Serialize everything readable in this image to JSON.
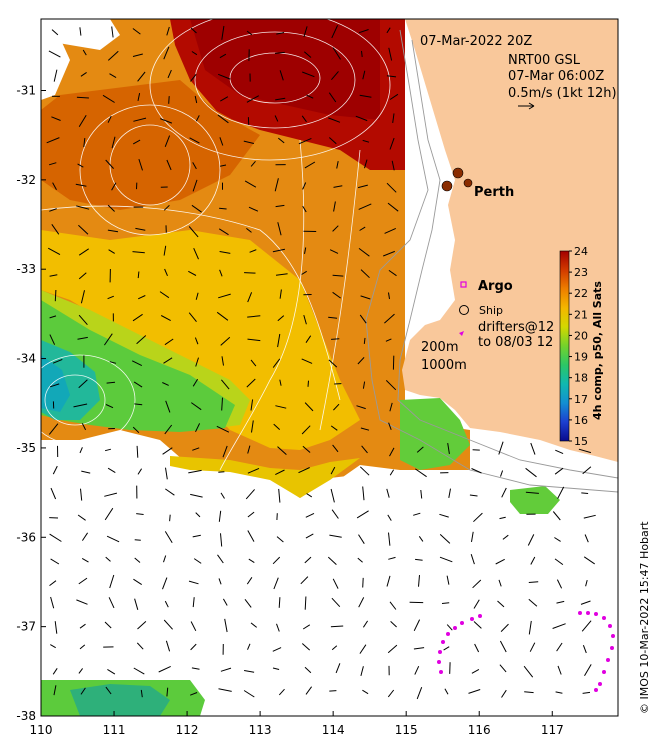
{
  "header": {
    "datetime": "07-Mar-2022 20Z",
    "model": "NRT00 GSL",
    "model_time": "07-Mar 06:00Z",
    "vector_scale": "0.5m/s (1kt 12h)"
  },
  "labels": {
    "city": "Perth",
    "argo": "Argo",
    "ship": "Ship",
    "drifters_line1": "drifters@12",
    "drifters_line2": "to 08/03 12",
    "contour_200": "200m",
    "contour_1000": "1000m"
  },
  "colorbar": {
    "title": "4h comp, p50, All Sats",
    "min": 15,
    "max": 24,
    "ticks": [
      "24",
      "23",
      "22",
      "21",
      "20",
      "19",
      "18",
      "17",
      "16",
      "15"
    ]
  },
  "credit": "© IMOS 10-Mar-2022 15:47 Hobart",
  "axes": {
    "x_ticks": [
      "110",
      "111",
      "112",
      "113",
      "114",
      "115",
      "116",
      "117"
    ],
    "y_ticks": [
      "-31",
      "-32",
      "-33",
      "-34",
      "-35",
      "-36",
      "-37",
      "-38"
    ],
    "lon_range": [
      110,
      117.9
    ],
    "lat_range": [
      -38,
      -30.2
    ]
  },
  "colors": {
    "land": "#f9c89b",
    "sst_hot": "#a80000",
    "sst_warm": "#d86a00",
    "sst_mid": "#f2b400",
    "sst_cool": "#48c84a",
    "sst_cold": "#00a0b4",
    "drifter": "#e000e0"
  }
}
